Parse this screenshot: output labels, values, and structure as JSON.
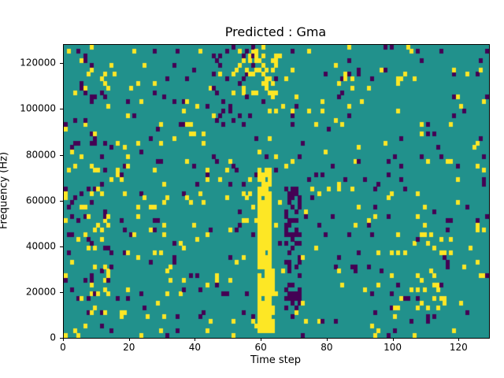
{
  "chart_data": {
    "type": "heatmap",
    "title": "Predicted : Gma",
    "xlabel": "Time step",
    "ylabel": "Frequency (Hz)",
    "x_range": [
      0,
      129
    ],
    "y_range": [
      0,
      128000
    ],
    "xticks": [
      0,
      20,
      40,
      60,
      80,
      100,
      120
    ],
    "xtick_labels": [
      "0",
      "20",
      "40",
      "60",
      "80",
      "100",
      "120"
    ],
    "yticks": [
      0,
      20000,
      40000,
      60000,
      80000,
      100000,
      120000
    ],
    "ytick_labels": [
      "0",
      "20000",
      "40000",
      "60000",
      "80000",
      "100000",
      "120000"
    ],
    "colors": {
      "low": "#440154",
      "mid": "#21918c",
      "high": "#fde725"
    },
    "grid": {
      "cols": 129,
      "rows": 64
    },
    "features": [
      {
        "x0": 59,
        "x1": 63,
        "y0": 3000,
        "y1": 74000,
        "value": "high",
        "density": 0.9
      },
      {
        "x0": 62,
        "x1": 64,
        "y0": 3000,
        "y1": 30000,
        "value": "high",
        "density": 0.5
      },
      {
        "x0": 67,
        "x1": 72,
        "y0": 13000,
        "y1": 66000,
        "value": "low",
        "density": 0.5
      },
      {
        "x0": 52,
        "x1": 66,
        "y0": 104000,
        "y1": 128000,
        "value": "high",
        "density": 0.22
      },
      {
        "x0": 0,
        "x1": 14,
        "y0": 0,
        "y1": 128000,
        "value": "low",
        "density": 0.05
      },
      {
        "x0": 0,
        "x1": 14,
        "y0": 0,
        "y1": 128000,
        "value": "high",
        "density": 0.04
      },
      {
        "x0": 100,
        "x1": 118,
        "y0": 8000,
        "y1": 45000,
        "value": "high",
        "density": 0.08
      },
      {
        "x0": 45,
        "x1": 58,
        "y0": 95000,
        "y1": 125000,
        "value": "low",
        "density": 0.08
      }
    ],
    "render_hints": {
      "seed": 7,
      "base_yellow": 0.032,
      "base_purple": 0.032,
      "legend": "off",
      "grid_lines": "off"
    }
  }
}
